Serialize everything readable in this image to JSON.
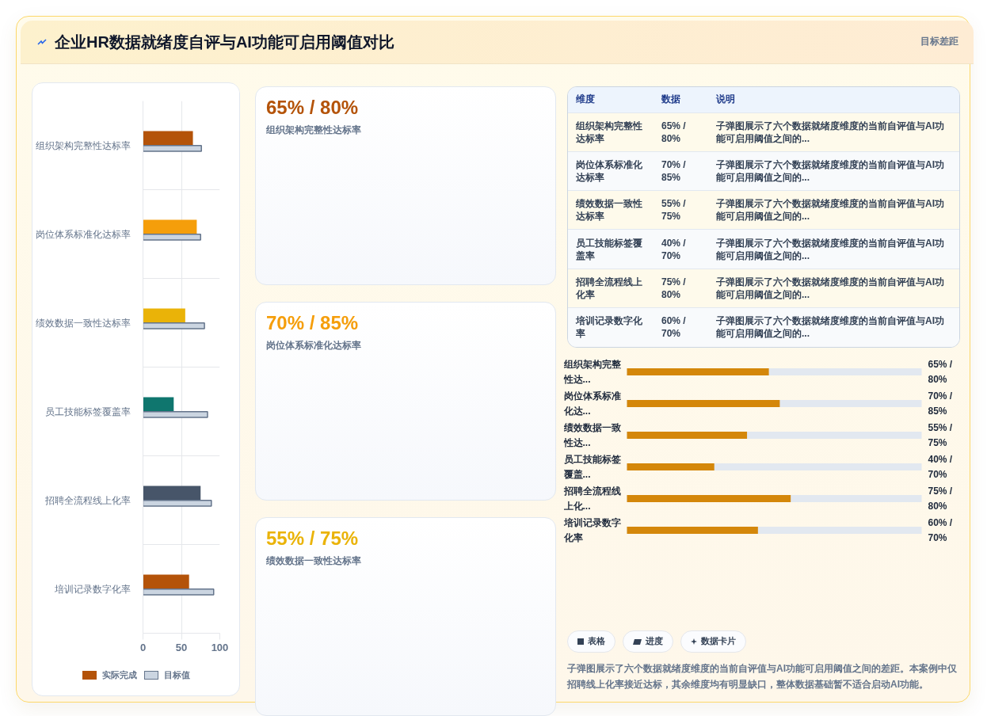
{
  "chart_data": [
    {
      "type": "other",
      "title": "企业HR数据就绪度自评与AI功能可启用阈值对比",
      "subtitle": "目标差距"
    },
    {
      "type": "bar",
      "orientation": "horizontal",
      "categories": [
        "组织架构完整性达标率",
        "岗位体系标准化达标率",
        "绩效数据一致性达标率",
        "员工技能标签覆盖率",
        "招聘全流程线上化率",
        "培训记录数字化率"
      ],
      "series": [
        {
          "name": "实际完成",
          "color": "#b45309",
          "colors": [
            "#b45309",
            "#f59e0b",
            "#eab308",
            "#0f766e",
            "#475569",
            "#b45309"
          ],
          "values": [
            65,
            70,
            55,
            40,
            75,
            60
          ]
        },
        {
          "name": "目标值",
          "color": "#cbd5e1",
          "values": [
            76,
            75,
            80,
            84,
            89,
            92
          ]
        }
      ],
      "xlim": [
        0,
        100
      ],
      "xticks": [
        0,
        50,
        100
      ],
      "grid": true,
      "legend": "bottom"
    },
    {
      "type": "other",
      "value_labels": [
        "65% / 80%",
        "70% / 85%",
        "55% / 75%"
      ],
      "colors": [
        "#b45309",
        "#f59e0b",
        "#eab308"
      ],
      "annotations": [
        "组织架构完整性达标率",
        "岗位体系标准化达标率",
        "绩效数据一致性达标率"
      ]
    },
    {
      "type": "other",
      "categories": [
        "维度",
        "数据",
        "说明"
      ],
      "cell_labels": [
        [
          "组织架构完整性达标率",
          "65% / 80%",
          "子弹图展示了六个数据就绪度维度的当前自评值与AI功能可启用阈值之间的..."
        ],
        [
          "岗位体系标准化达标率",
          "70% / 85%",
          "子弹图展示了六个数据就绪度维度的当前自评值与AI功能可启用阈值之间的..."
        ],
        [
          "绩效数据一致性达标率",
          "55% / 75%",
          "子弹图展示了六个数据就绪度维度的当前自评值与AI功能可启用阈值之间的..."
        ],
        [
          "员工技能标签覆盖率",
          "40% / 70%",
          "子弹图展示了六个数据就绪度维度的当前自评值与AI功能可启用阈值之间的..."
        ],
        [
          "招聘全流程线上化率",
          "75% / 80%",
          "子弹图展示了六个数据就绪度维度的当前自评值与AI功能可启用阈值之间的..."
        ],
        [
          "培训记录数字化率",
          "60% / 70%",
          "子弹图展示了六个数据就绪度维度的当前自评值与AI功能可启用阈值之间的..."
        ]
      ]
    },
    {
      "type": "bar",
      "orientation": "horizontal",
      "categories": [
        "组织架构完整性达...",
        "岗位体系标准化达...",
        "绩效数据一致性达...",
        "员工技能标签覆盖...",
        "招聘全流程线上化...",
        "培训记录数字化率"
      ],
      "values": [
        65,
        70,
        55,
        40,
        75,
        60
      ],
      "color": "#d4870a",
      "value_labels": [
        "65% / 80%",
        "70% / 85%",
        "55% / 75%",
        "40% / 70%",
        "75% / 80%",
        "60% / 70%"
      ],
      "xlim": [
        0,
        135
      ]
    },
    {
      "type": "other",
      "categories": [
        "表格",
        "进度",
        "数据卡片"
      ],
      "annotations": [
        "子弹图展示了六个数据就绪度维度的当前自评值与AI功能可启用阈值之间的差距。本案例中仅招聘线上化率接近达标，其余维度均有明显缺口，整体数据基础暂不适合启动AI功能。"
      ]
    }
  ]
}
